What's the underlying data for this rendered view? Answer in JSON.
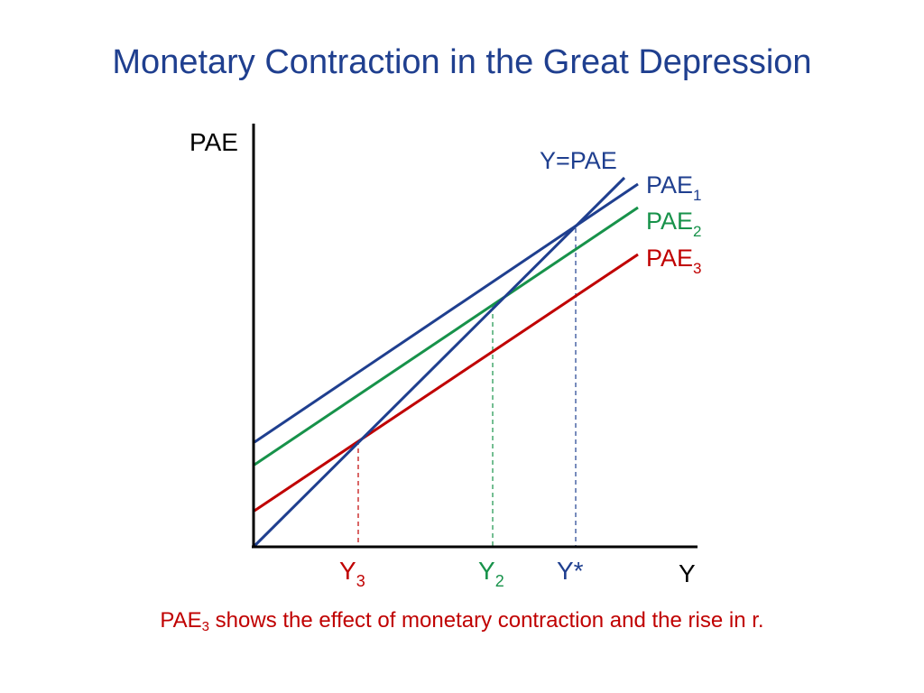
{
  "title": "Monetary Contraction in the Great Depression",
  "colors": {
    "title": "#1f3f8f",
    "blue": "#1f3f8f",
    "green": "#17924a",
    "red": "#c00000",
    "axis": "#000000"
  },
  "axes": {
    "y_label": "PAE",
    "x_label": "Y"
  },
  "lines": {
    "diagonal": {
      "label": "Y=PAE"
    },
    "pae1": {
      "base": "PAE",
      "sub": "1"
    },
    "pae2": {
      "base": "PAE",
      "sub": "2"
    },
    "pae3": {
      "base": "PAE",
      "sub": "3"
    }
  },
  "x_markers": {
    "y3": {
      "base": "Y",
      "sub": "3"
    },
    "y2": {
      "base": "Y",
      "sub": "2"
    },
    "ystar": {
      "label": "Y*"
    }
  },
  "caption": {
    "prefix": "PAE",
    "sub": "3",
    "text": " shows the effect of monetary contraction and the rise in r."
  }
}
